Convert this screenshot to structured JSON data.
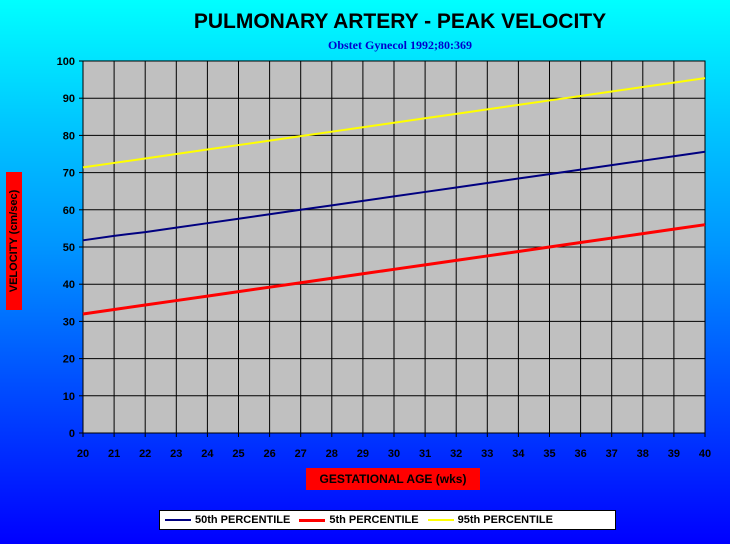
{
  "chart_data": {
    "type": "line",
    "title": "PULMONARY ARTERY - PEAK VELOCITY",
    "subtitle": "Obstet Gynecol 1992;80:369",
    "xlabel": "GESTATIONAL AGE (wks)",
    "ylabel": "VELOCITY (cm/sec)",
    "x": [
      20,
      21,
      22,
      23,
      24,
      25,
      26,
      27,
      28,
      29,
      30,
      31,
      32,
      33,
      34,
      35,
      36,
      37,
      38,
      39,
      40
    ],
    "xlim": [
      20,
      40
    ],
    "ylim": [
      0,
      100
    ],
    "yticks": [
      0,
      10,
      20,
      30,
      40,
      50,
      60,
      70,
      80,
      90,
      100
    ],
    "grid": true,
    "legend_position": "bottom",
    "plot_background": "#c0c0c0",
    "series": [
      {
        "name": "50th PERCENTILE",
        "color": "#000080",
        "values": [
          51.8,
          53.0,
          54.0,
          55.2,
          56.4,
          57.6,
          58.8,
          60.0,
          61.2,
          62.4,
          63.6,
          64.8,
          66.0,
          67.2,
          68.4,
          69.6,
          70.8,
          72.0,
          73.2,
          74.4,
          75.6
        ]
      },
      {
        "name": "5th PERCENTILE",
        "color": "#ff0000",
        "values": [
          32.0,
          33.2,
          34.4,
          35.6,
          36.8,
          38.0,
          39.2,
          40.4,
          41.6,
          42.8,
          44.0,
          45.2,
          46.4,
          47.6,
          48.8,
          50.0,
          51.2,
          52.4,
          53.6,
          54.8,
          56.0
        ]
      },
      {
        "name": "95th PERCENTILE",
        "color": "#ffff00",
        "values": [
          71.4,
          72.6,
          73.8,
          75.0,
          76.2,
          77.4,
          78.6,
          79.8,
          81.0,
          82.2,
          83.4,
          84.6,
          85.8,
          87.0,
          88.2,
          89.4,
          90.6,
          91.8,
          93.0,
          94.2,
          95.4
        ]
      }
    ]
  }
}
